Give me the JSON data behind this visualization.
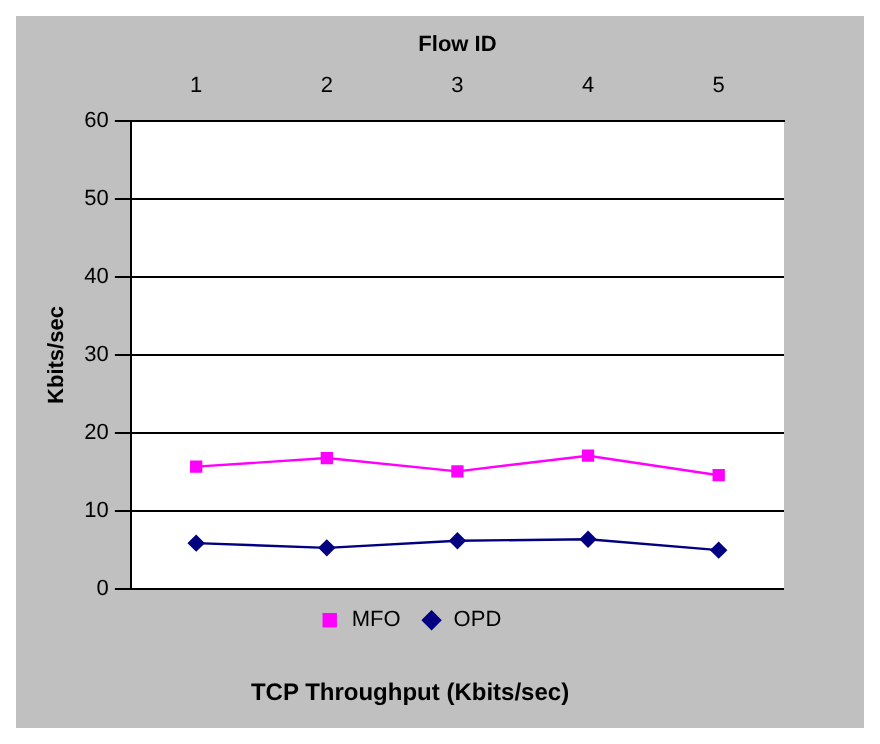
{
  "chart_data": {
    "type": "line",
    "title": "TCP Throughput (Kbits/sec)",
    "xlabel": "Flow ID",
    "ylabel": "Kbits/sec",
    "categories": [
      "1",
      "2",
      "3",
      "4",
      "5"
    ],
    "series": [
      {
        "name": "MFO",
        "color": "#ff00ff",
        "marker": "square",
        "values": [
          15.7,
          16.8,
          15.1,
          17.1,
          14.6
        ]
      },
      {
        "name": "OPD",
        "color": "#000080",
        "marker": "diamond",
        "values": [
          5.9,
          5.3,
          6.2,
          6.4,
          5.0
        ]
      }
    ],
    "ylim": [
      0,
      60
    ],
    "yticks": [
      0,
      10,
      20,
      30,
      40,
      50,
      60
    ],
    "grid": "y",
    "legend": "bottom",
    "line_style": "solid"
  }
}
